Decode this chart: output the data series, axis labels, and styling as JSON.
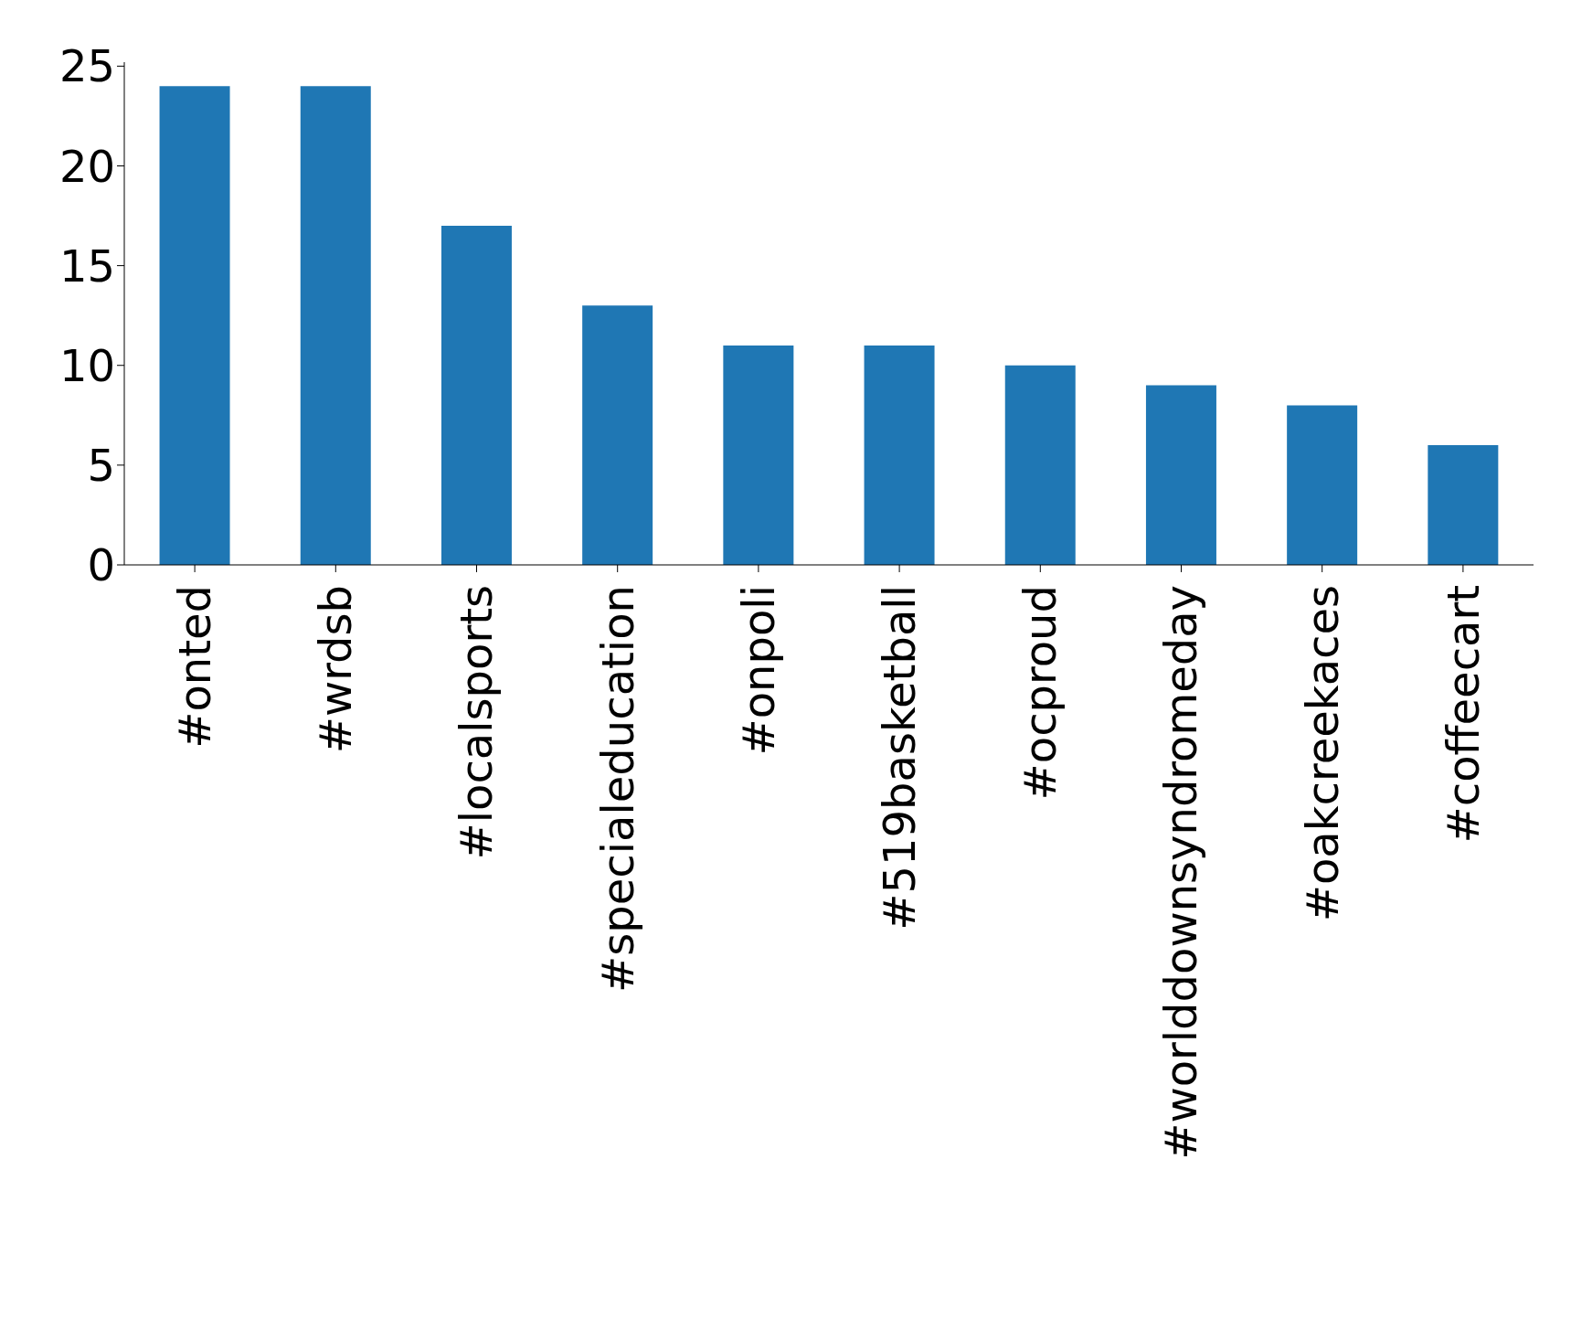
{
  "chart_data": {
    "type": "bar",
    "categories": [
      "#onted",
      "#wrdsb",
      "#localsports",
      "#specialeducation",
      "#onpoli",
      "#519basketball",
      "#ocproud",
      "#worlddownsyndromeday",
      "#oakcreekaces",
      "#coffeecart"
    ],
    "values": [
      24,
      24,
      17,
      13,
      11,
      11,
      10,
      9,
      8,
      6
    ],
    "color": "#1f77b4",
    "ylim": [
      0,
      25.2
    ],
    "yticks": [
      0,
      5,
      10,
      15,
      20,
      25
    ]
  }
}
